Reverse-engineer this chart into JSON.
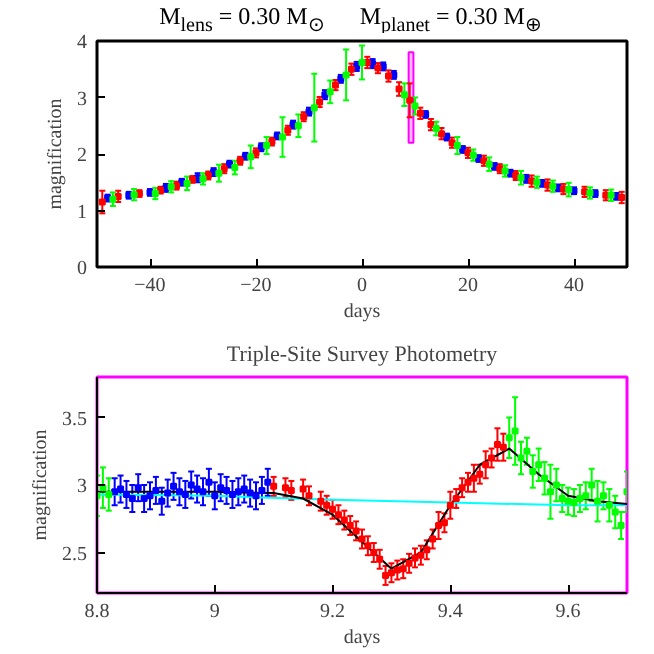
{
  "chart_data": [
    {
      "type": "scatter",
      "title": "M$_{lens}$ = 0.30 M$_{⊙}$      M$_{planet}$ = 0.30 M$_{⊕}$",
      "xlabel": "days",
      "ylabel": "magnification",
      "xlim": [
        -50,
        50
      ],
      "ylim": [
        0,
        4
      ],
      "xticks": [
        -40,
        -20,
        0,
        20,
        40
      ],
      "yticks": [
        0,
        1,
        2,
        3,
        4
      ],
      "grid": false,
      "marker": "square",
      "bands": [
        {
          "axis": "x",
          "from": 8.8,
          "to": 9.7,
          "color": "#ff00ff"
        }
      ],
      "series": [
        {
          "color": "#0000ff",
          "x": [
            -48,
            -44,
            -40,
            -37,
            -34,
            -31,
            -28,
            -25,
            -22,
            -19,
            -16,
            -13,
            -10,
            -7,
            -4,
            -1,
            2,
            4,
            6,
            12,
            16,
            19,
            22,
            25,
            28,
            31,
            34,
            37,
            40,
            44,
            48
          ],
          "values": [
            1.22,
            1.27,
            1.32,
            1.4,
            1.5,
            1.58,
            1.68,
            1.82,
            1.96,
            2.12,
            2.32,
            2.52,
            2.75,
            3.05,
            3.33,
            3.55,
            3.6,
            3.55,
            3.4,
            2.7,
            2.3,
            2.08,
            1.92,
            1.78,
            1.66,
            1.56,
            1.48,
            1.4,
            1.35,
            1.3,
            1.25
          ],
          "errors": [
            0.06,
            0.06,
            0.06,
            0.07,
            0.06,
            0.08,
            0.07,
            0.06,
            0.06,
            0.07,
            0.06,
            0.07,
            0.07,
            0.08,
            0.07,
            0.08,
            0.08,
            0.07,
            0.07,
            0.06,
            0.06,
            0.06,
            0.06,
            0.06,
            0.06,
            0.07,
            0.06,
            0.06,
            0.06,
            0.06,
            0.06
          ]
        },
        {
          "color": "#ff0000",
          "x": [
            -49,
            -46,
            -42,
            -38,
            -35,
            -32,
            -29,
            -26,
            -23,
            -20,
            -17,
            -14,
            -11,
            -8,
            -5,
            -2,
            1,
            3,
            5,
            7,
            9,
            11,
            13,
            15,
            17,
            20,
            23,
            26,
            29,
            32,
            35,
            38,
            42,
            46,
            49
          ],
          "values": [
            1.15,
            1.25,
            1.3,
            1.36,
            1.44,
            1.55,
            1.62,
            1.74,
            1.88,
            2.02,
            2.22,
            2.42,
            2.66,
            2.92,
            3.22,
            3.5,
            3.62,
            3.52,
            3.38,
            3.15,
            2.95,
            2.72,
            2.52,
            2.36,
            2.2,
            2.02,
            1.88,
            1.74,
            1.62,
            1.52,
            1.45,
            1.38,
            1.33,
            1.27,
            1.23
          ],
          "errors": [
            0.2,
            0.1,
            0.06,
            0.06,
            0.07,
            0.06,
            0.07,
            0.08,
            0.07,
            0.08,
            0.07,
            0.08,
            0.08,
            0.09,
            0.09,
            0.1,
            0.1,
            0.09,
            0.1,
            0.12,
            0.3,
            0.1,
            0.1,
            0.1,
            0.09,
            0.09,
            0.09,
            0.08,
            0.08,
            0.1,
            0.1,
            0.09,
            0.09,
            0.09,
            0.1
          ]
        },
        {
          "color": "#00ff00",
          "x": [
            -47,
            -43,
            -39,
            -36,
            -33,
            -30,
            -27,
            -24,
            -21,
            -18,
            -15,
            -12,
            -9,
            -6,
            -3,
            0,
            8,
            10,
            14,
            18,
            21,
            24,
            27,
            30,
            33,
            36,
            39,
            43,
            47
          ],
          "values": [
            1.2,
            1.28,
            1.3,
            1.42,
            1.48,
            1.56,
            1.66,
            1.76,
            1.95,
            2.15,
            2.3,
            2.5,
            2.82,
            3.1,
            3.4,
            3.62,
            3.05,
            2.85,
            2.45,
            2.15,
            1.98,
            1.82,
            1.7,
            1.58,
            1.5,
            1.43,
            1.37,
            1.31,
            1.27
          ],
          "errors": [
            0.12,
            0.1,
            0.1,
            0.1,
            0.12,
            0.1,
            0.15,
            0.12,
            0.2,
            0.15,
            0.35,
            0.2,
            0.6,
            0.2,
            0.45,
            0.3,
            0.2,
            0.15,
            0.12,
            0.15,
            0.1,
            0.12,
            0.1,
            0.12,
            0.1,
            0.1,
            0.12,
            0.1,
            0.1
          ]
        }
      ]
    },
    {
      "type": "scatter",
      "title": "Triple-Site Survey Photometry",
      "xlabel": "days",
      "ylabel": "magnification",
      "xlim": [
        8.8,
        9.7
      ],
      "ylim": [
        2.2,
        3.8
      ],
      "xticks": [
        8.8,
        9,
        9.2,
        9.4,
        9.6
      ],
      "yticks": [
        2.5,
        3,
        3.5
      ],
      "grid": false,
      "marker": "square",
      "series": [
        {
          "type": "line",
          "marker": "none",
          "color": "#00ffff",
          "x": [
            8.8,
            9.0,
            9.2,
            9.4,
            9.6,
            9.7
          ],
          "values": [
            2.93,
            2.92,
            2.89,
            2.87,
            2.85,
            2.85
          ]
        },
        {
          "type": "line",
          "marker": "none",
          "color": "#000000",
          "x": [
            8.8,
            9.0,
            9.1,
            9.15,
            9.2,
            9.25,
            9.3,
            9.35,
            9.4,
            9.45,
            9.5,
            9.55,
            9.6,
            9.65,
            9.7
          ],
          "values": [
            2.95,
            2.95,
            2.94,
            2.9,
            2.78,
            2.58,
            2.38,
            2.5,
            2.85,
            3.15,
            3.27,
            3.08,
            2.92,
            2.88,
            2.86
          ]
        },
        {
          "color": "#0000ff",
          "x": [
            8.83,
            8.84,
            8.85,
            8.86,
            8.87,
            8.88,
            8.89,
            8.9,
            8.91,
            8.92,
            8.93,
            8.94,
            8.95,
            8.96,
            8.97,
            8.98,
            8.99,
            9.0,
            9.01,
            9.02,
            9.03,
            9.04,
            9.05,
            9.06,
            9.07,
            9.08,
            9.09
          ],
          "values": [
            2.95,
            2.97,
            2.93,
            2.9,
            2.98,
            2.9,
            2.92,
            2.96,
            2.88,
            2.94,
            2.99,
            2.95,
            2.93,
            3.0,
            2.97,
            2.95,
            3.02,
            2.92,
            2.98,
            2.96,
            2.93,
            2.95,
            2.97,
            2.94,
            2.92,
            2.96,
            3.02
          ],
          "errors": [
            0.1,
            0.1,
            0.1,
            0.1,
            0.1,
            0.1,
            0.1,
            0.1,
            0.1,
            0.1,
            0.1,
            0.1,
            0.1,
            0.1,
            0.1,
            0.1,
            0.1,
            0.1,
            0.1,
            0.1,
            0.1,
            0.1,
            0.1,
            0.1,
            0.1,
            0.1,
            0.1
          ]
        },
        {
          "color": "#ff0000",
          "x": [
            9.1,
            9.12,
            9.13,
            9.15,
            9.16,
            9.18,
            9.19,
            9.2,
            9.21,
            9.22,
            9.23,
            9.24,
            9.25,
            9.26,
            9.27,
            9.28,
            9.29,
            9.3,
            9.31,
            9.32,
            9.33,
            9.34,
            9.35,
            9.36,
            9.37,
            9.38,
            9.39,
            9.4,
            9.41,
            9.42,
            9.43,
            9.44,
            9.45,
            9.46,
            9.47,
            9.48,
            9.49
          ],
          "values": [
            2.99,
            2.98,
            2.96,
            2.97,
            2.92,
            2.88,
            2.85,
            2.82,
            2.78,
            2.74,
            2.7,
            2.66,
            2.6,
            2.55,
            2.5,
            2.45,
            2.33,
            2.35,
            2.37,
            2.38,
            2.42,
            2.46,
            2.48,
            2.52,
            2.6,
            2.7,
            2.72,
            2.85,
            2.9,
            2.98,
            3.02,
            3.05,
            3.08,
            3.15,
            3.2,
            3.3,
            3.28
          ],
          "errors": [
            0.07,
            0.07,
            0.07,
            0.07,
            0.07,
            0.07,
            0.07,
            0.07,
            0.07,
            0.07,
            0.07,
            0.07,
            0.07,
            0.07,
            0.07,
            0.07,
            0.07,
            0.07,
            0.07,
            0.07,
            0.07,
            0.07,
            0.07,
            0.07,
            0.07,
            0.1,
            0.07,
            0.1,
            0.07,
            0.07,
            0.07,
            0.1,
            0.07,
            0.1,
            0.07,
            0.12,
            0.1
          ]
        },
        {
          "color": "#00ff00",
          "x": [
            8.8,
            8.81,
            8.82,
            9.5,
            9.51,
            9.52,
            9.53,
            9.54,
            9.55,
            9.56,
            9.57,
            9.58,
            9.59,
            9.6,
            9.61,
            9.62,
            9.63,
            9.64,
            9.65,
            9.66,
            9.67,
            9.68,
            9.69,
            9.7
          ],
          "values": [
            2.92,
            2.98,
            2.93,
            3.35,
            3.4,
            3.2,
            3.25,
            3.1,
            3.15,
            3.05,
            2.95,
            3.0,
            2.9,
            2.88,
            2.87,
            2.9,
            2.92,
            3.0,
            2.88,
            2.92,
            2.85,
            2.8,
            2.7,
            2.95
          ],
          "errors": [
            0.15,
            0.15,
            0.12,
            0.15,
            0.25,
            0.12,
            0.1,
            0.12,
            0.12,
            0.12,
            0.2,
            0.12,
            0.1,
            0.1,
            0.1,
            0.1,
            0.1,
            0.12,
            0.15,
            0.1,
            0.12,
            0.12,
            0.1,
            0.15
          ]
        }
      ]
    }
  ]
}
